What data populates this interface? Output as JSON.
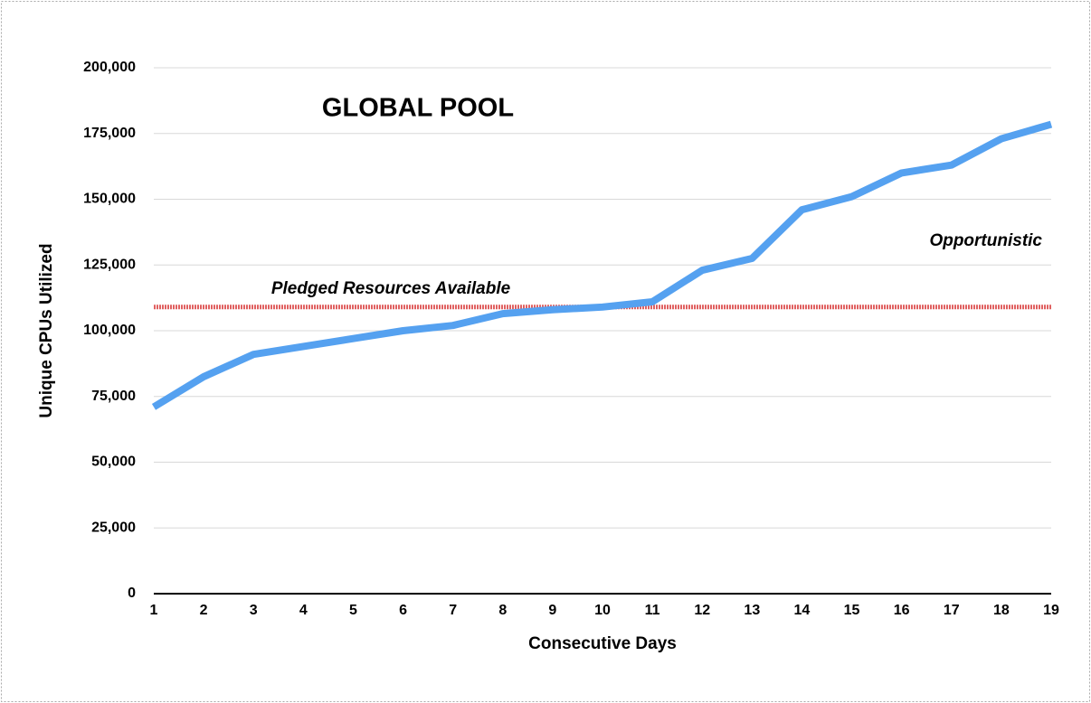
{
  "chart_data": {
    "type": "line",
    "title": "GLOBAL POOL",
    "x_label": "Consecutive Days",
    "y_label": "Unique CPUs Utilized",
    "x": [
      1,
      2,
      3,
      4,
      5,
      6,
      7,
      8,
      9,
      10,
      11,
      12,
      13,
      14,
      15,
      16,
      17,
      18,
      19
    ],
    "xlim": [
      1,
      19
    ],
    "xticks": [
      1,
      2,
      3,
      4,
      5,
      6,
      7,
      8,
      9,
      10,
      11,
      12,
      13,
      14,
      15,
      16,
      17,
      18,
      19
    ],
    "ylim": [
      0,
      200000
    ],
    "yticks": [
      0,
      {
        "value": 25000,
        "label": "25,000"
      },
      {
        "value": 50000,
        "label": "50,000"
      },
      {
        "value": 75000,
        "label": "75,000"
      },
      {
        "value": 100000,
        "label": "100,000"
      },
      {
        "value": 125000,
        "label": "125,000"
      },
      {
        "value": 150000,
        "label": "150,000"
      },
      {
        "value": 175000,
        "label": "175,000"
      },
      {
        "value": 200000,
        "label": "200,000"
      }
    ],
    "grid": true,
    "series": [
      {
        "color": "#55a1f0",
        "values": [
          71000,
          82500,
          91000,
          94000,
          97000,
          100000,
          102000,
          106500,
          108000,
          109000,
          111000,
          123000,
          127500,
          146000,
          151000,
          160000,
          163000,
          173000,
          178500
        ]
      }
    ],
    "reference_line": {
      "label": "Pledged Resources Available",
      "value": 109000,
      "color": "#e06060"
    },
    "annotations": [
      "Opportunistic"
    ]
  }
}
